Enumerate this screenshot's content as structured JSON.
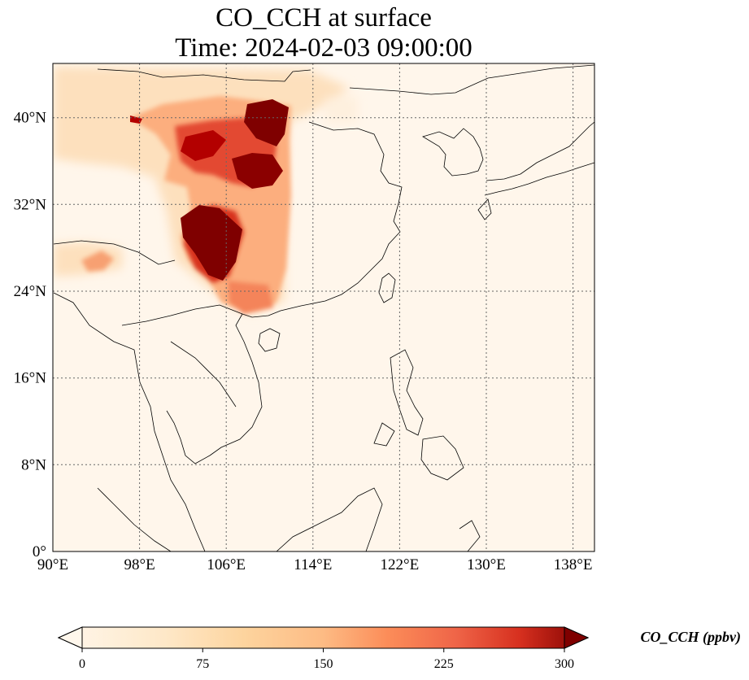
{
  "title": {
    "line1": "CO_CCH at surface",
    "line2": "Time: 2024-02-03 09:00:00"
  },
  "map": {
    "lon_range": [
      90,
      140
    ],
    "lat_range": [
      0,
      45
    ],
    "lon_ticks": [
      "90°E",
      "98°E",
      "106°E",
      "114°E",
      "122°E",
      "130°E",
      "138°E"
    ],
    "lat_ticks": [
      "0°",
      "8°N",
      "16°N",
      "24°N",
      "32°N",
      "40°N"
    ],
    "gridlines": "dotted",
    "field": "CO_CCH",
    "colormap": "OrRd",
    "colors": {
      "background_low": "#fff7ec",
      "low": "#fdd49e",
      "mid": "#fc8d59",
      "high": "#d7301f",
      "max": "#7f0000"
    }
  },
  "colorbar": {
    "ticks": [
      "0",
      "75",
      "150",
      "225",
      "300"
    ],
    "range": [
      0,
      300
    ],
    "extend": "both",
    "label": "CO_CCH (ppbv)",
    "orientation": "horizontal"
  }
}
